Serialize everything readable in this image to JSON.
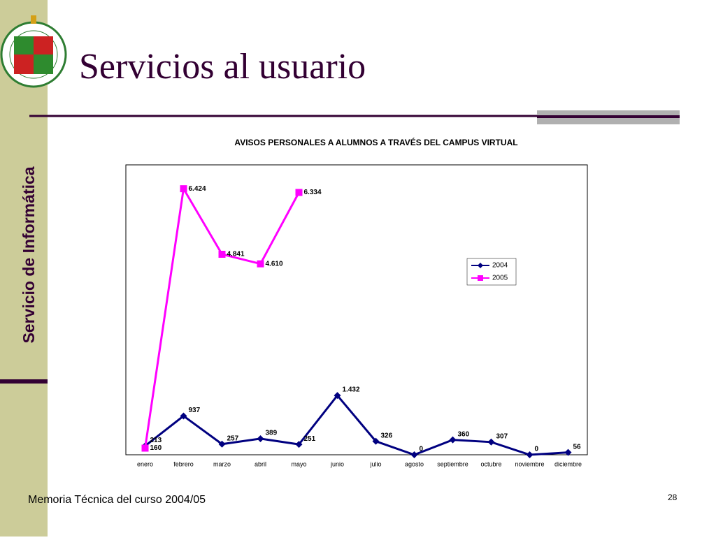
{
  "sidebar": "Servicio de Informática",
  "title": "Servicios al usuario",
  "footer": "Memoria Técnica del curso 2004/05",
  "page_number": "28",
  "chart_data": {
    "type": "line",
    "title": "AVISOS PERSONALES A ALUMNOS A TRAVÉS DEL CAMPUS VIRTUAL",
    "categories": [
      "enero",
      "febrero",
      "marzo",
      "abril",
      "mayo",
      "junio",
      "julio",
      "agosto",
      "septiembre",
      "octubre",
      "noviembre",
      "diciembre"
    ],
    "series": [
      {
        "name": "2004",
        "color": "#000080",
        "marker": "diamond",
        "values": [
          213,
          937,
          257,
          389,
          251,
          1432,
          326,
          0,
          360,
          307,
          0,
          56
        ],
        "value_labels": [
          "213",
          "937",
          "257",
          "389",
          "251",
          "1.432",
          "326",
          "0",
          "360",
          "307",
          "0",
          "56"
        ]
      },
      {
        "name": "2005",
        "color": "#ff00ff",
        "marker": "square",
        "values": [
          160,
          6424,
          4841,
          4610,
          6334,
          null,
          null,
          null,
          null,
          null,
          null,
          null
        ],
        "value_labels": [
          "160",
          "6.424",
          "4.841",
          "4.610",
          "6.334",
          null,
          null,
          null,
          null,
          null,
          null,
          null
        ]
      }
    ],
    "ylim": [
      0,
      7000
    ],
    "legend": "right"
  }
}
